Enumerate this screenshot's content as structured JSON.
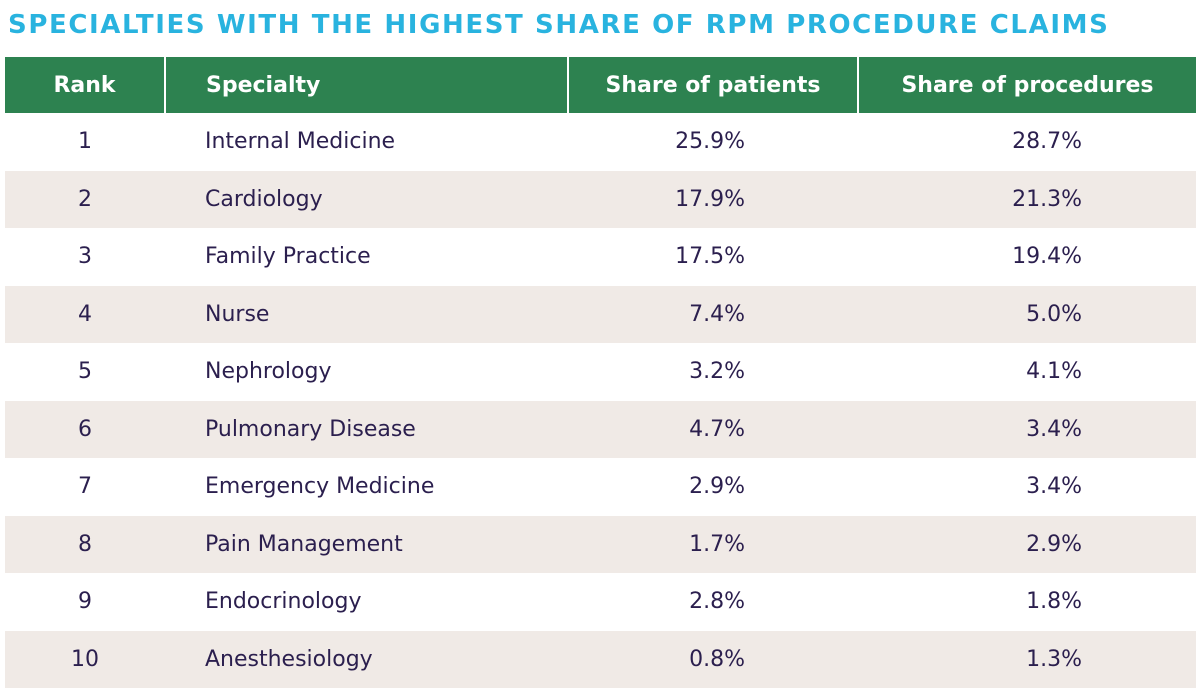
{
  "title": "SPECIALTIES WITH THE HIGHEST SHARE OF RPM PROCEDURE CLAIMS",
  "table": {
    "headers": [
      "Rank",
      "Specialty",
      "Share of patients",
      "Share of procedures"
    ],
    "rows": [
      [
        "1",
        "Internal Medicine",
        "25.9%",
        "28.7%"
      ],
      [
        "2",
        "Cardiology",
        "17.9%",
        "21.3%"
      ],
      [
        "3",
        "Family Practice",
        "17.5%",
        "19.4%"
      ],
      [
        "4",
        "Nurse",
        "7.4%",
        "5.0%"
      ],
      [
        "5",
        "Nephrology",
        "3.2%",
        "4.1%"
      ],
      [
        "6",
        "Pulmonary Disease",
        "4.7%",
        "3.4%"
      ],
      [
        "7",
        "Emergency Medicine",
        "2.9%",
        "3.4%"
      ],
      [
        "8",
        "Pain Management",
        "1.7%",
        "2.9%"
      ],
      [
        "9",
        "Endocrinology",
        "2.8%",
        "1.8%"
      ],
      [
        "10",
        "Anesthesiology",
        "0.8%",
        "1.3%"
      ]
    ]
  }
}
